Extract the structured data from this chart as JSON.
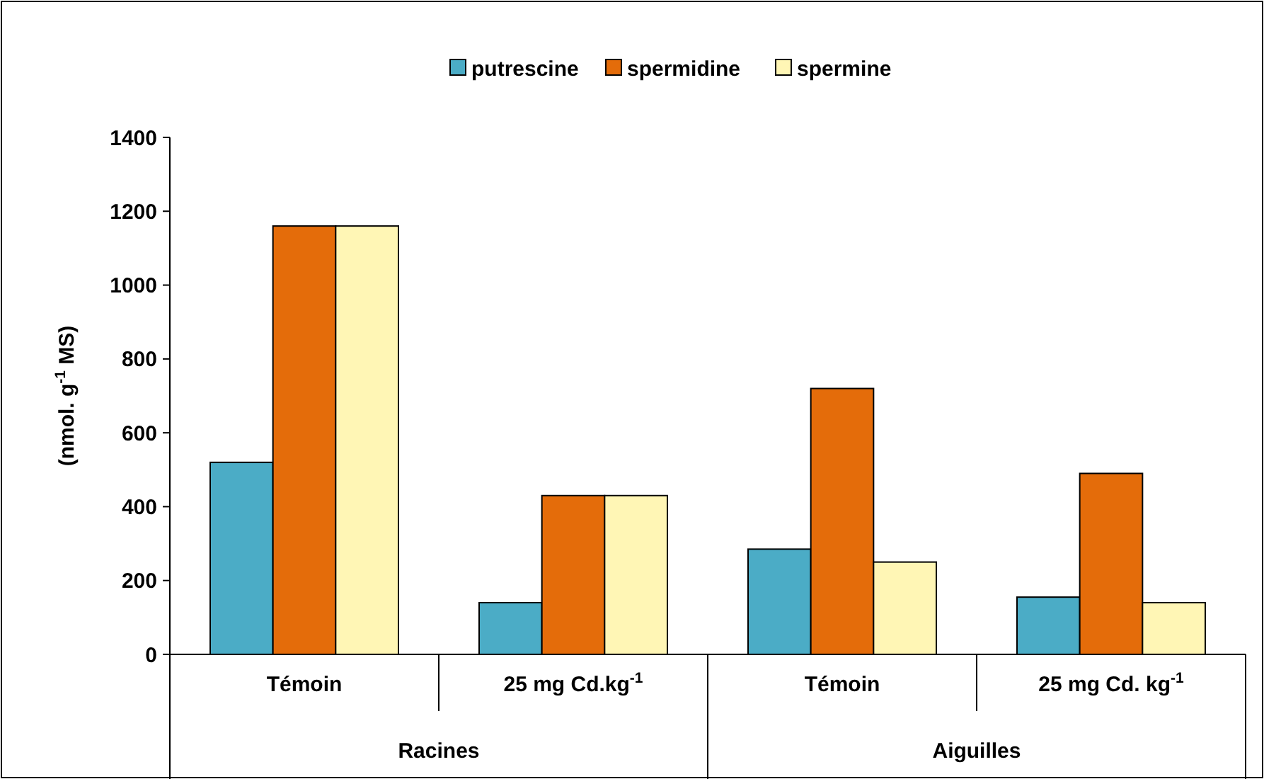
{
  "chart_data": {
    "type": "bar",
    "ylabel": "(nmol. g$^{-1}$ MS)",
    "categories": [
      "Témoin",
      "25 mg Cd.kg$^{-1}$",
      "Témoin",
      "25 mg Cd. kg$^{-1}$"
    ],
    "annotations": [
      "Racines",
      "Aiguilles"
    ],
    "series": [
      {
        "name": "putrescine",
        "color": "#4bacc6",
        "values": [
          520,
          140,
          285,
          155
        ]
      },
      {
        "name": "spermidine",
        "color": "#e46c0a",
        "values": [
          1160,
          430,
          720,
          490
        ]
      },
      {
        "name": "spermine",
        "color": "#fff6b5",
        "values": [
          1160,
          430,
          250,
          140
        ]
      }
    ],
    "ylim": [
      0,
      1400
    ],
    "yticks": [
      0,
      200,
      400,
      600,
      800,
      1000,
      1200,
      1400
    ],
    "grid": false,
    "legend": "top"
  }
}
